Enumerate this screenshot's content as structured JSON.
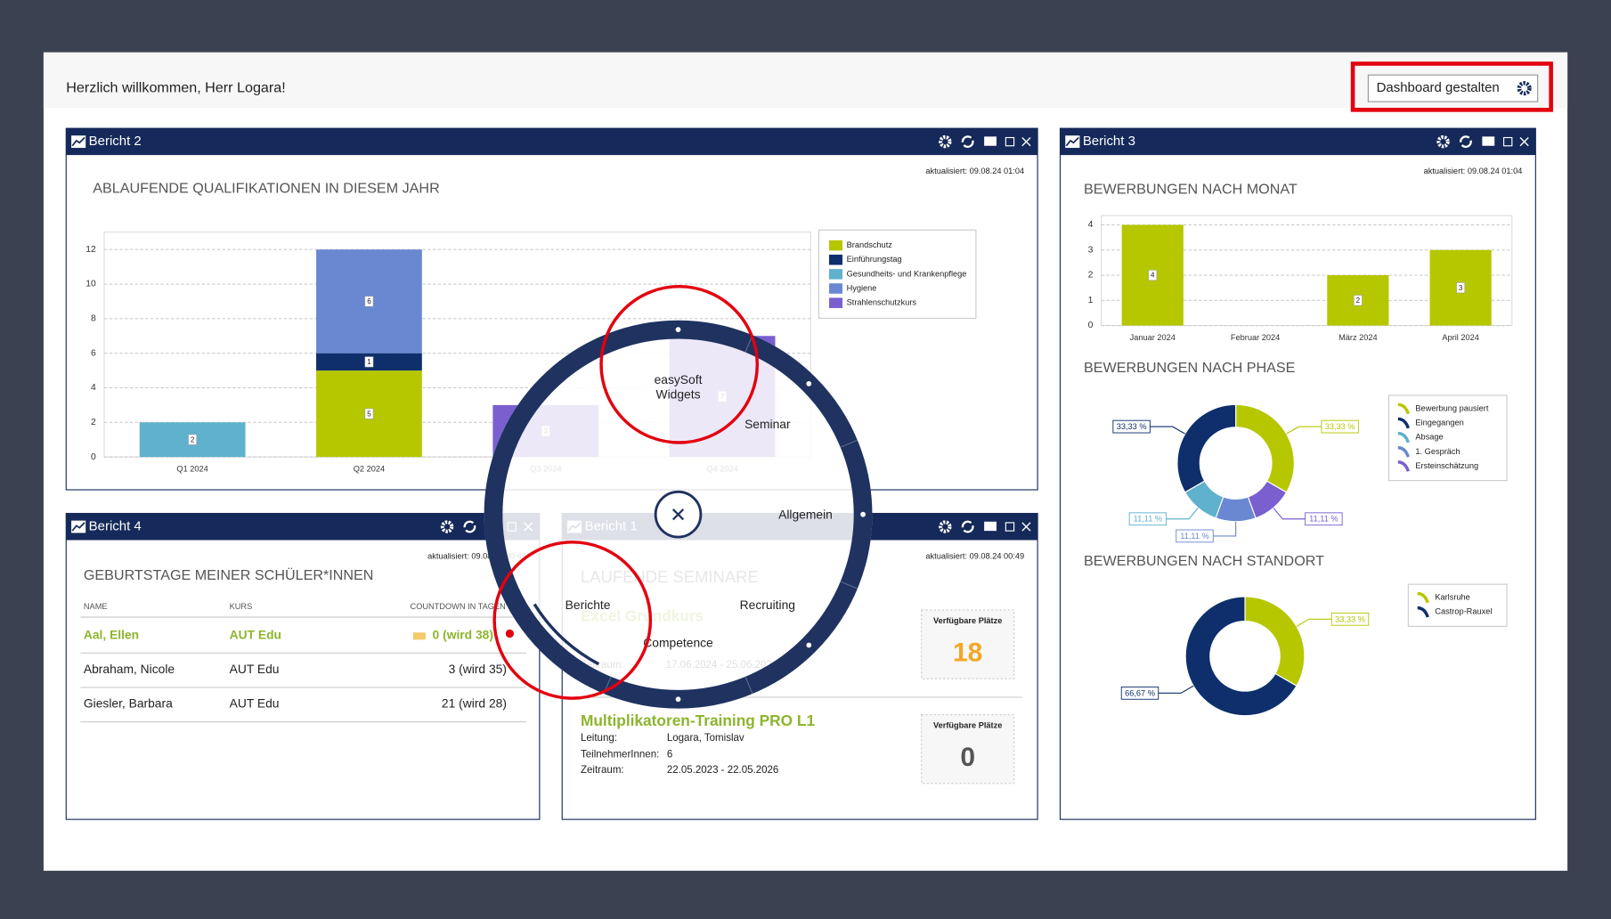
{
  "header": {
    "greeting": "Herzlich willkommen, Herr Logara!",
    "button": "Dashboard gestalten"
  },
  "widgets": [
    {
      "title": "Bericht 2",
      "updated": "aktualisiert: 09.08.24 01:04"
    },
    {
      "title": "Bericht 3",
      "updated": "aktualisiert: 09.08.24 01:04"
    },
    {
      "title": "Bericht 4",
      "updated": "aktualisiert: 09.08.24 00:49"
    },
    {
      "title": "Bericht 1",
      "updated": "aktualisiert: 09.08.24 00:49"
    }
  ],
  "chart_data": [
    {
      "type": "bar",
      "stacked": true,
      "title": "ABLAUFENDE QUALIFIKATIONEN IN DIESEM JAHR",
      "categories": [
        "Q1 2024",
        "Q2 2024",
        "Q3 2024",
        "Q4 2024"
      ],
      "series": [
        {
          "name": "Brandschutz",
          "color": "#b6c700",
          "values": [
            null,
            5,
            null,
            null
          ]
        },
        {
          "name": "Einführungstag",
          "color": "#0e2f6b",
          "values": [
            null,
            1,
            null,
            null
          ]
        },
        {
          "name": "Gesundheits- und Krankenpflege",
          "color": "#5fb1cd",
          "values": [
            2,
            null,
            null,
            null
          ]
        },
        {
          "name": "Hygiene",
          "color": "#6a88d2",
          "values": [
            null,
            6,
            null,
            null
          ]
        },
        {
          "name": "Strahlenschutzkurs",
          "color": "#7a5fcf",
          "values": [
            null,
            null,
            3,
            7
          ]
        }
      ],
      "ylim": [
        0,
        12
      ],
      "yticks": [
        0,
        2,
        4,
        6,
        8,
        10,
        12
      ],
      "grid": true,
      "legend": "right"
    },
    {
      "type": "bar",
      "title": "BEWERBUNGEN NACH MONAT",
      "categories": [
        "Januar 2024",
        "Februar 2024",
        "März 2024",
        "April 2024"
      ],
      "values": [
        4,
        null,
        2,
        3
      ],
      "color": "#b6c700",
      "ylim": [
        0,
        4
      ],
      "yticks": [
        0,
        1,
        2,
        3,
        4
      ],
      "grid": true
    },
    {
      "type": "pie",
      "donut": true,
      "title": "BEWERBUNGEN NACH PHASE",
      "categories": [
        "Bewerbung pausiert",
        "Eingegangen",
        "Absage",
        "1. Gespräch",
        "Ersteinschätzung"
      ],
      "values": [
        33.33,
        33.33,
        11.11,
        11.11,
        11.11
      ],
      "value_labels": [
        "33,33 %",
        "33,33 %",
        "11,11 %",
        "11,11 %",
        "11,11 %"
      ],
      "colors": [
        "#b6c700",
        "#0e2f6b",
        "#5fb1cd",
        "#6a88d2",
        "#7a5fcf"
      ],
      "legend": "right"
    },
    {
      "type": "pie",
      "donut": true,
      "title": "BEWERBUNGEN NACH STANDORT",
      "categories": [
        "Karlsruhe",
        "Castrop-Rauxel"
      ],
      "values": [
        33.33,
        66.67
      ],
      "value_labels": [
        "33,33 %",
        "66,67 %"
      ],
      "colors": [
        "#b6c700",
        "#0e2f6b"
      ],
      "legend": "right"
    }
  ],
  "birthdays": {
    "title": "GEBURTSTAGE MEINER SCHÜLER*INNEN",
    "columns": [
      "NAME",
      "KURS",
      "COUNTDOWN IN TAGEN"
    ],
    "rows": [
      [
        "Aal, Ellen",
        "AUT Edu",
        "0 (wird 38)"
      ],
      [
        "Abraham, Nicole",
        "AUT Edu",
        "3 (wird 35)"
      ],
      [
        "Giesler, Barbara",
        "AUT Edu",
        "21 (wird 28)"
      ]
    ]
  },
  "seminars": {
    "title": "LAUFENDE SEMINARE",
    "seats_label": "Verfügbare Plätze",
    "field_labels": [
      "Leitung:",
      "TeilnehmerInnen:",
      "Zeitraum:"
    ],
    "items": [
      {
        "name": "Excel Grundkurs",
        "period": "17.06.2024  - 25.06.2024",
        "seats": "18"
      },
      {
        "name": "Multiplikatoren-Training PRO L1",
        "leitung": "Logara, Tomislav",
        "participants": "6",
        "period": "22.05.2023  - 22.05.2026",
        "seats": "0"
      }
    ]
  },
  "menu": {
    "items": [
      "easySoft Widgets",
      "Seminar",
      "Allgemein",
      "Recruiting",
      "Competence",
      "Berichte"
    ]
  }
}
